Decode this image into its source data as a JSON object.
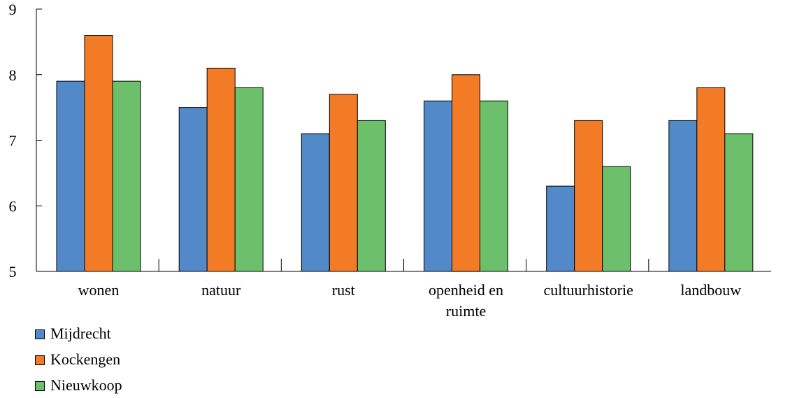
{
  "chart_data": {
    "type": "bar",
    "categories": [
      [
        "wonen"
      ],
      [
        "natuur"
      ],
      [
        "rust"
      ],
      [
        "openheid en",
        "ruimte"
      ],
      [
        "cultuurhistorie"
      ],
      [
        "landbouw"
      ]
    ],
    "series": [
      {
        "name": "Mijdrecht",
        "color": "#5289c9",
        "values": [
          7.9,
          7.5,
          7.1,
          7.6,
          6.3,
          7.3
        ]
      },
      {
        "name": "Kockengen",
        "color": "#f47b25",
        "values": [
          8.6,
          8.1,
          7.7,
          8.0,
          7.3,
          7.8
        ]
      },
      {
        "name": "Nieuwkoop",
        "color": "#6cc06b",
        "values": [
          7.9,
          7.8,
          7.3,
          7.6,
          6.6,
          7.1
        ]
      }
    ],
    "yticks": [
      5,
      6,
      7,
      8,
      9
    ],
    "ylim": [
      5,
      9
    ],
    "title": "",
    "xlabel": "",
    "ylabel": "",
    "grid": false,
    "legend_position": "bottom-left"
  }
}
